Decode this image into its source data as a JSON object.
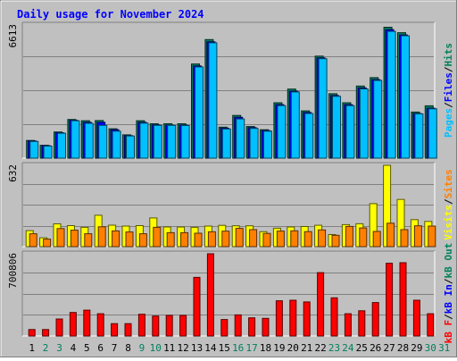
{
  "chart_data": {
    "type": "bar",
    "title": "Daily usage for November 2024",
    "categories": [
      "1",
      "2",
      "3",
      "4",
      "5",
      "6",
      "7",
      "8",
      "9",
      "10",
      "11",
      "12",
      "13",
      "14",
      "15",
      "16",
      "17",
      "18",
      "19",
      "20",
      "21",
      "22",
      "23",
      "24",
      "25",
      "26",
      "27",
      "28",
      "29",
      "30",
      "31"
    ],
    "weekend_days": [
      2,
      3,
      9,
      10,
      16,
      17,
      23,
      24,
      30,
      31
    ],
    "hits_panel": {
      "ymax_label": "6613",
      "ylim": [
        0,
        6613
      ],
      "labels": [
        "Pages",
        "/",
        "Files",
        "/",
        "Hits"
      ],
      "series": [
        {
          "name": "Hits",
          "color": "#00805c",
          "values": [
            880,
            640,
            1300,
            1920,
            1860,
            1870,
            1460,
            1160,
            1860,
            1710,
            1710,
            1710,
            4680,
            5890,
            1540,
            2120,
            1570,
            1410,
            2750,
            3430,
            2350,
            5070,
            3200,
            2750,
            3580,
            4000,
            6500,
            6230,
            2290,
            2600
          ]
        },
        {
          "name": "Files",
          "color": "#0000ff",
          "values": [
            850,
            620,
            1260,
            1880,
            1780,
            1780,
            1410,
            1120,
            1780,
            1650,
            1640,
            1640,
            4580,
            5780,
            1490,
            2030,
            1520,
            1370,
            2660,
            3330,
            2270,
            4980,
            3110,
            2660,
            3490,
            3900,
            6380,
            6120,
            2220,
            2480
          ]
        },
        {
          "name": "Pages",
          "color": "#00c0ff",
          "values": [
            830,
            600,
            1240,
            1860,
            1730,
            1630,
            1340,
            1100,
            1740,
            1630,
            1630,
            1620,
            4530,
            5730,
            1450,
            1950,
            1480,
            1340,
            2610,
            3290,
            2220,
            4940,
            3070,
            2610,
            3440,
            3860,
            6300,
            6080,
            2200,
            2450
          ]
        }
      ]
    },
    "visits_panel": {
      "ymax_label": "632",
      "ylim": [
        0,
        632
      ],
      "labels": [
        "Visits",
        "/",
        "Sites"
      ],
      "series": [
        {
          "name": "Visits",
          "color": "#ffff00",
          "values": [
            124,
            69,
            177,
            163,
            150,
            244,
            167,
            160,
            163,
            223,
            153,
            152,
            150,
            160,
            165,
            162,
            162,
            116,
            143,
            153,
            156,
            166,
            94,
            171,
            178,
            334,
            632,
            367,
            210,
            196
          ]
        },
        {
          "name": "Sites",
          "color": "#ff8000",
          "values": [
            100,
            58,
            140,
            128,
            100,
            154,
            122,
            114,
            100,
            150,
            108,
            108,
            104,
            115,
            120,
            142,
            132,
            103,
            121,
            123,
            117,
            130,
            88,
            157,
            145,
            118,
            182,
            132,
            162,
            160
          ]
        }
      ]
    },
    "kbytes_panel": {
      "ymax_label": "700806",
      "ylim": [
        0,
        700806
      ],
      "labels": [
        "kB F",
        "/",
        "kB In",
        "/",
        "kB Out"
      ],
      "series": [
        {
          "name": "kB F",
          "color": "#ff0000",
          "values": [
            55000,
            55000,
            145000,
            200000,
            220000,
            190000,
            105000,
            105000,
            185000,
            170000,
            175000,
            175000,
            500000,
            700806,
            140000,
            180000,
            155000,
            150000,
            300000,
            305000,
            290000,
            540000,
            325000,
            190000,
            215000,
            285000,
            620000,
            625000,
            305000,
            190000
          ]
        }
      ]
    },
    "colors": {
      "background": "#c0c0c0",
      "grid": "#808080",
      "title": "#0000ff",
      "weekday_label": "#000000",
      "weekend_label": "#00805c",
      "kb_in": "#0000ff",
      "kb_out": "#00805c"
    }
  }
}
